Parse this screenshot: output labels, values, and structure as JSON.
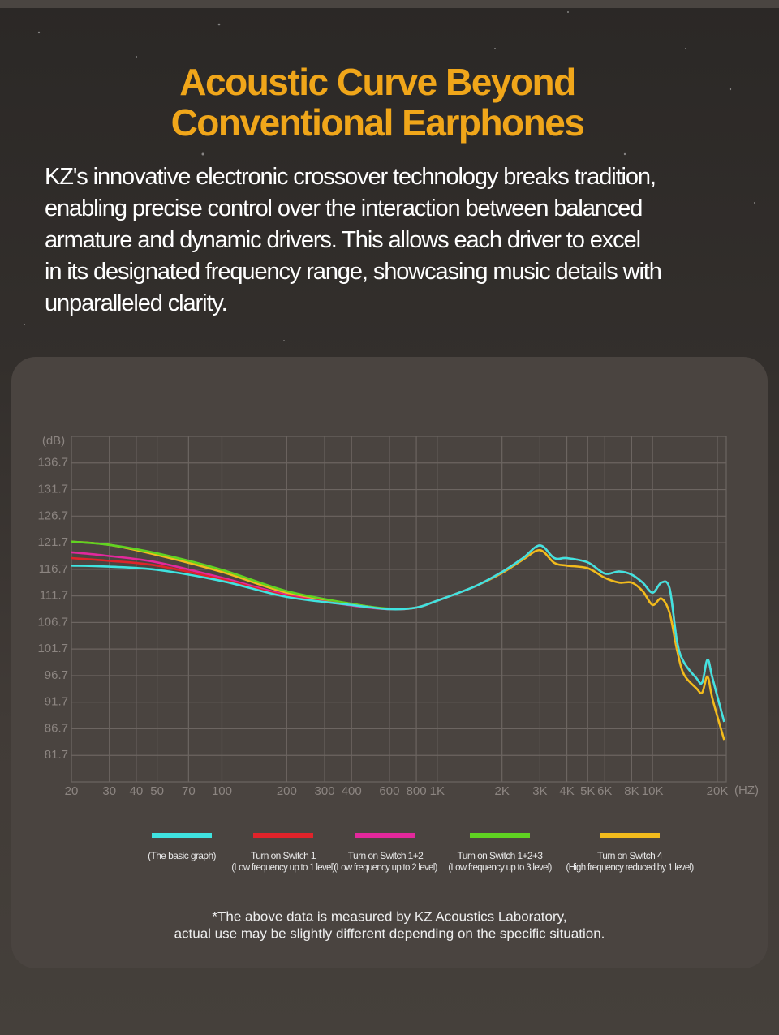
{
  "header": {
    "title_lines": [
      "Acoustic Curve Beyond",
      "Conventional Earphones"
    ],
    "body_lines": [
      "KZ's innovative electronic crossover technology breaks tradition,",
      "enabling precise control over the interaction between balanced",
      "armature and dynamic drivers. This allows each driver to excel",
      "in its designated frequency range, showcasing music details with",
      "unparalleled clarity."
    ]
  },
  "chart_data": {
    "type": "line",
    "y_label": "(dB)",
    "x_label": "(HZ)",
    "log_x": true,
    "grid": true,
    "x": [
      20,
      30,
      50,
      100,
      200,
      400,
      600,
      800,
      1000,
      1500,
      2000,
      2500,
      3000,
      3500,
      4000,
      5000,
      6000,
      7000,
      8000,
      9000,
      10000,
      11000,
      12000,
      13000,
      14000,
      16000,
      17000,
      18000,
      19000,
      21500
    ],
    "xlim": [
      20,
      22000
    ],
    "xticks": [
      20,
      30,
      40,
      50,
      70,
      100,
      200,
      300,
      400,
      600,
      800,
      {
        "value": 1000,
        "label": "1K"
      },
      {
        "value": 2000,
        "label": "2K"
      },
      {
        "value": 3000,
        "label": "3K"
      },
      {
        "value": 4000,
        "label": "4K"
      },
      {
        "value": 5000,
        "label": "5K"
      },
      {
        "value": 6000,
        "label": "6K"
      },
      {
        "value": 8000,
        "label": "8K"
      },
      {
        "value": 10000,
        "label": "10K"
      },
      {
        "value": 20000,
        "label": "20K"
      }
    ],
    "ylim": [
      76.7,
      141.7
    ],
    "yticks": [
      81.7,
      86.7,
      91.7,
      96.7,
      101.7,
      106.7,
      111.7,
      116.7,
      121.7,
      126.7,
      131.7,
      136.7
    ],
    "series": [
      {
        "name": "(The basic graph)",
        "color": "#3fe3e0",
        "values": [
          117.4,
          117.2,
          116.6,
          114.5,
          111.5,
          110.0,
          109.2,
          109.5,
          110.8,
          113.5,
          116.2,
          118.8,
          121.2,
          118.8,
          118.8,
          118.0,
          115.9,
          116.3,
          115.7,
          114.2,
          112.3,
          114.2,
          113.1,
          103.1,
          99.2,
          96.2,
          95.4,
          99.7,
          96.2,
          88.0
        ]
      },
      {
        "name": "Turn on Switch 1",
        "description": "(Low frequency up to 1 level)",
        "color": "#e0232a",
        "values": [
          118.8,
          118.3,
          117.4,
          114.8,
          111.7,
          110.0,
          109.2,
          109.5,
          110.8,
          113.5,
          116.2,
          118.8,
          121.2,
          118.8,
          118.8,
          118.0,
          115.9,
          116.3,
          115.7,
          114.2,
          112.3,
          114.2,
          113.1,
          103.1,
          99.2,
          96.2,
          95.4,
          99.7,
          96.2,
          88.0
        ]
      },
      {
        "name": "Turn on Switch 1+2",
        "description": "(Low frequency up to 2 level)",
        "color": "#e3289c",
        "values": [
          119.9,
          119.2,
          118.0,
          115.1,
          111.9,
          109.9,
          109.2,
          109.5,
          110.8,
          113.5,
          116.2,
          118.8,
          121.2,
          118.8,
          118.8,
          118.0,
          115.9,
          116.3,
          115.7,
          114.2,
          112.3,
          114.2,
          113.1,
          103.1,
          99.2,
          96.2,
          95.4,
          99.7,
          96.2,
          88.0
        ]
      },
      {
        "name": "Turn on Switch 1+2+3",
        "description": "(Low frequency up to 3 level)",
        "color": "#5fd322",
        "values": [
          121.9,
          121.3,
          119.7,
          116.6,
          112.6,
          110.2,
          109.3,
          109.5,
          110.8,
          113.5,
          116.2,
          118.8,
          121.2,
          118.8,
          118.8,
          118.0,
          115.9,
          116.3,
          115.7,
          114.2,
          112.3,
          114.2,
          113.1,
          103.1,
          99.2,
          96.2,
          95.4,
          99.7,
          96.2,
          88.0
        ]
      },
      {
        "name": "Turn on Switch 4",
        "description": "(High frequency reduced by 1 level)",
        "color": "#f2bb1c",
        "values": [
          121.9,
          121.3,
          119.4,
          116.2,
          112.3,
          110.2,
          109.2,
          109.5,
          110.8,
          113.5,
          116.0,
          118.5,
          120.3,
          117.9,
          117.4,
          116.9,
          115.1,
          114.2,
          114.2,
          112.6,
          110.0,
          111.2,
          108.5,
          101.5,
          96.9,
          94.3,
          93.5,
          96.5,
          92.3,
          84.6
        ]
      }
    ]
  },
  "footnote": {
    "lines": [
      "*The above data is measured by KZ Acoustics Laboratory,",
      "actual use may be slightly different depending on the specific situation."
    ]
  }
}
